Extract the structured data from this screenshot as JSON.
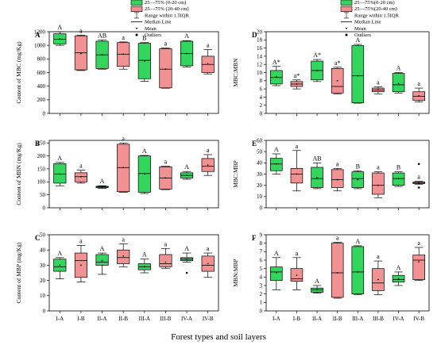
{
  "figure": {
    "xlabel": "Forest types and soil layers",
    "colors": {
      "green": "#33d65c",
      "pink": "#f29191",
      "stroke": "#000000"
    }
  },
  "legend_left": {
    "entries": [
      "25—75% (0-20 cm)",
      "25—75% (20-40 cm)",
      "Range within 1.5IQR",
      "Median Line",
      "Mean",
      "Outliers"
    ]
  },
  "legend_right": {
    "entries": [
      "25—75%(0-20 cm)",
      "25—75%(20-40 cm)",
      "Range within 1.5IQR",
      "Median Line",
      "Mean",
      "Outliers"
    ]
  },
  "chart_data": [
    {
      "type": "box",
      "panel": "A",
      "ylabel": "Content of MBC (mg/Kg)",
      "yticks": [
        0,
        200,
        400,
        600,
        800,
        1000,
        1200
      ],
      "ylim": [
        0,
        1200
      ],
      "categories": [
        "I-A",
        "I-B",
        "II-A",
        "II-B",
        "III-A",
        "III-B",
        "IV-A",
        "IV-B"
      ],
      "boxes": [
        {
          "cat": "I-A",
          "color": "green",
          "min": 1000,
          "q1": 1020,
          "median": 1090,
          "q3": 1170,
          "max": 1200,
          "mean": 1095,
          "letter": "A"
        },
        {
          "cat": "I-B",
          "color": "pink",
          "min": 630,
          "q1": 640,
          "median": 890,
          "q3": 1140,
          "max": 1150,
          "mean": 880,
          "letter": "a"
        },
        {
          "cat": "II-A",
          "color": "green",
          "min": 650,
          "q1": 660,
          "median": 860,
          "q3": 1060,
          "max": 1080,
          "mean": 860,
          "letter": "AB"
        },
        {
          "cat": "II-B",
          "color": "pink",
          "min": 650,
          "q1": 690,
          "median": 870,
          "q3": 1040,
          "max": 1050,
          "mean": 870,
          "letter": "a"
        },
        {
          "cat": "III-A",
          "color": "green",
          "min": 470,
          "q1": 510,
          "median": 780,
          "q3": 1030,
          "max": 1040,
          "mean": 770,
          "letter": "B"
        },
        {
          "cat": "III-B",
          "color": "pink",
          "min": 370,
          "q1": 375,
          "median": 650,
          "q3": 950,
          "max": 960,
          "mean": 650,
          "letter": "a"
        },
        {
          "cat": "IV-A",
          "color": "green",
          "min": 680,
          "q1": 700,
          "median": 880,
          "q3": 1060,
          "max": 1070,
          "mean": 880,
          "letter": "A"
        },
        {
          "cat": "IV-B",
          "color": "pink",
          "min": 580,
          "q1": 600,
          "median": 720,
          "q3": 840,
          "max": 940,
          "mean": 730,
          "letter": "a"
        }
      ]
    },
    {
      "type": "box",
      "panel": "B",
      "ylabel": "Content of MBN (mg/Kg)",
      "yticks": [
        0,
        50,
        100,
        150,
        200,
        250
      ],
      "ylim": [
        0,
        260
      ],
      "categories": [
        "I-A",
        "I-B",
        "II-A",
        "II-B",
        "III-A",
        "III-B",
        "IV-A",
        "IV-B"
      ],
      "boxes": [
        {
          "cat": "I-A",
          "color": "green",
          "min": 85,
          "q1": 95,
          "median": 130,
          "q3": 170,
          "max": 175,
          "mean": 130,
          "letter": "A"
        },
        {
          "cat": "I-B",
          "color": "pink",
          "min": 95,
          "q1": 100,
          "median": 120,
          "q3": 135,
          "max": 145,
          "mean": 120,
          "letter": "a"
        },
        {
          "cat": "II-A",
          "color": "green",
          "min": 75,
          "q1": 78,
          "median": 80,
          "q3": 83,
          "max": 85,
          "mean": 80,
          "letter": "A"
        },
        {
          "cat": "II-B",
          "color": "pink",
          "min": 60,
          "q1": 62,
          "median": 155,
          "q3": 245,
          "max": 250,
          "mean": 155,
          "letter": "a"
        },
        {
          "cat": "III-A",
          "color": "green",
          "min": 55,
          "q1": 60,
          "median": 132,
          "q3": 200,
          "max": 202,
          "mean": 130,
          "letter": "A"
        },
        {
          "cat": "III-B",
          "color": "pink",
          "min": 70,
          "q1": 72,
          "median": 115,
          "q3": 158,
          "max": 160,
          "mean": 115,
          "letter": "a"
        },
        {
          "cat": "IV-A",
          "color": "green",
          "min": 110,
          "q1": 115,
          "median": 125,
          "q3": 135,
          "max": 140,
          "mean": 125,
          "letter": "A"
        },
        {
          "cat": "IV-B",
          "color": "pink",
          "min": 125,
          "q1": 140,
          "median": 160,
          "q3": 190,
          "max": 205,
          "mean": 165,
          "letter": "a"
        }
      ]
    },
    {
      "type": "box",
      "panel": "C",
      "ylabel": "Content of MBP (mg/Kg)",
      "yticks": [
        0,
        10,
        20,
        30,
        40,
        50
      ],
      "ylim": [
        0,
        50
      ],
      "categories": [
        "I-A",
        "I-B",
        "II-A",
        "II-B",
        "III-A",
        "III-B",
        "IV-A",
        "IV-B"
      ],
      "boxes": [
        {
          "cat": "I-A",
          "color": "green",
          "min": 21,
          "q1": 26,
          "median": 29,
          "q3": 34,
          "max": 35,
          "mean": 30,
          "letter": "A"
        },
        {
          "cat": "I-B",
          "color": "pink",
          "min": 19,
          "q1": 22,
          "median": 33,
          "q3": 38,
          "max": 43,
          "mean": 30,
          "letter": "a"
        },
        {
          "cat": "II-A",
          "color": "green",
          "min": 24,
          "q1": 30,
          "median": 32,
          "q3": 37,
          "max": 38,
          "mean": 33,
          "letter": "A"
        },
        {
          "cat": "II-B",
          "color": "pink",
          "min": 29,
          "q1": 31,
          "median": 35,
          "q3": 40,
          "max": 44,
          "mean": 36,
          "letter": "a"
        },
        {
          "cat": "III-A",
          "color": "green",
          "min": 25,
          "q1": 27,
          "median": 29,
          "q3": 31,
          "max": 34,
          "mean": 29,
          "letter": "A"
        },
        {
          "cat": "III-B",
          "color": "pink",
          "min": 28,
          "q1": 29,
          "median": 31,
          "q3": 37,
          "max": 41,
          "mean": 32,
          "letter": "a"
        },
        {
          "cat": "IV-A",
          "color": "green",
          "min": 32,
          "q1": 33,
          "median": 34,
          "q3": 35,
          "max": 38,
          "mean": 34,
          "outliers": [
            25
          ],
          "letter": "A"
        },
        {
          "cat": "IV-B",
          "color": "pink",
          "min": 22,
          "q1": 26,
          "median": 30,
          "q3": 36,
          "max": 38,
          "mean": 31,
          "letter": "a"
        }
      ]
    },
    {
      "type": "box",
      "panel": "D",
      "ylabel": "MBC:MBN",
      "yticks": [
        0,
        2,
        4,
        6,
        8,
        10,
        12,
        14,
        16,
        18,
        20
      ],
      "ylim": [
        0,
        20
      ],
      "categories": [
        "I-A",
        "I-B",
        "II-A",
        "II-B",
        "III-A",
        "III-B",
        "IV-A",
        "IV-B"
      ],
      "boxes": [
        {
          "cat": "I-A",
          "color": "green",
          "min": 6.8,
          "q1": 7.2,
          "median": 8.8,
          "q3": 10.5,
          "max": 11.5,
          "mean": 9,
          "letter": "A*"
        },
        {
          "cat": "I-B",
          "color": "pink",
          "min": 6.0,
          "q1": 6.6,
          "median": 7.2,
          "q3": 7.8,
          "max": 8.2,
          "mean": 7.2,
          "letter": "a*"
        },
        {
          "cat": "II-A",
          "color": "green",
          "min": 7.8,
          "q1": 8.2,
          "median": 10.5,
          "q3": 12.8,
          "max": 13.2,
          "mean": 10.5,
          "letter": "A*"
        },
        {
          "cat": "II-B",
          "color": "pink",
          "min": 4.8,
          "q1": 5.0,
          "median": 6.6,
          "q3": 11.0,
          "max": 11.3,
          "mean": 8,
          "letter": "a*"
        },
        {
          "cat": "III-A",
          "color": "green",
          "min": 2.5,
          "q1": 2.6,
          "median": 9.2,
          "q3": 16.6,
          "max": 16.9,
          "mean": 9.2,
          "letter": "A"
        },
        {
          "cat": "III-B",
          "color": "pink",
          "min": 4.8,
          "q1": 5.3,
          "median": 5.7,
          "q3": 6.2,
          "max": 6.5,
          "mean": 5.8,
          "letter": "a"
        },
        {
          "cat": "IV-A",
          "color": "green",
          "min": 5.0,
          "q1": 5.3,
          "median": 7.0,
          "q3": 9.8,
          "max": 10.0,
          "mean": 7.3,
          "letter": "A"
        },
        {
          "cat": "IV-B",
          "color": "pink",
          "min": 2.8,
          "q1": 3.2,
          "median": 4.2,
          "q3": 5.3,
          "max": 6.2,
          "mean": 4.3,
          "letter": "a"
        }
      ]
    },
    {
      "type": "box",
      "panel": "E",
      "ylabel": "MBC:MBP",
      "yticks": [
        0,
        10,
        20,
        30,
        40,
        50,
        60
      ],
      "ylim": [
        0,
        60
      ],
      "categories": [
        "I-A",
        "I-B",
        "II-A",
        "II-B",
        "III-A",
        "III-B",
        "IV-A",
        "IV-B"
      ],
      "boxes": [
        {
          "cat": "I-A",
          "color": "green",
          "min": 30,
          "q1": 33,
          "median": 39,
          "q3": 44,
          "max": 48,
          "mean": 39,
          "letter": "A"
        },
        {
          "cat": "I-B",
          "color": "pink",
          "min": 15,
          "q1": 22,
          "median": 30,
          "q3": 35,
          "max": 51,
          "mean": 30,
          "letter": "a"
        },
        {
          "cat": "II-A",
          "color": "green",
          "min": 17,
          "q1": 18,
          "median": 26,
          "q3": 36,
          "max": 40,
          "mean": 27,
          "letter": "AB"
        },
        {
          "cat": "II-B",
          "color": "pink",
          "min": 15,
          "q1": 18,
          "median": 25,
          "q3": 34,
          "max": 35,
          "mean": 25,
          "letter": "a"
        },
        {
          "cat": "III-A",
          "color": "green",
          "min": 17,
          "q1": 18,
          "median": 26,
          "q3": 32,
          "max": 33,
          "mean": 25,
          "letter": "B"
        },
        {
          "cat": "III-B",
          "color": "pink",
          "min": 9,
          "q1": 12,
          "median": 20,
          "q3": 31,
          "max": 32,
          "mean": 20,
          "letter": "a"
        },
        {
          "cat": "IV-A",
          "color": "green",
          "min": 19,
          "q1": 20,
          "median": 26,
          "q3": 31,
          "max": 32,
          "mean": 26,
          "letter": "B"
        },
        {
          "cat": "IV-B",
          "color": "pink",
          "min": 21,
          "q1": 21.5,
          "median": 22,
          "q3": 23,
          "max": 23.5,
          "mean": 22,
          "outliers": [
            39,
            18
          ],
          "letter": "a"
        }
      ]
    },
    {
      "type": "box",
      "panel": "F",
      "ylabel": "MBN:MBP",
      "yticks": [
        0,
        1,
        2,
        3,
        4,
        5,
        6,
        7,
        8,
        9
      ],
      "ylim": [
        0,
        9
      ],
      "categories": [
        "I-A",
        "I-B",
        "II-A",
        "II-B",
        "III-A",
        "III-B",
        "IV-A",
        "IV-B"
      ],
      "boxes": [
        {
          "cat": "I-A",
          "color": "green",
          "min": 2.5,
          "q1": 3.6,
          "median": 4.6,
          "q3": 5.2,
          "max": 6.3,
          "mean": 4.5,
          "letter": "A"
        },
        {
          "cat": "I-B",
          "color": "pink",
          "min": 2.5,
          "q1": 3.5,
          "median": 3.8,
          "q3": 5.0,
          "max": 6.3,
          "mean": 4.2,
          "letter": "a"
        },
        {
          "cat": "II-A",
          "color": "green",
          "min": 2.1,
          "q1": 2.2,
          "median": 2.5,
          "q3": 2.7,
          "max": 3.0,
          "mean": 2.5,
          "letter": "A"
        },
        {
          "cat": "II-B",
          "color": "pink",
          "min": 1.5,
          "q1": 1.6,
          "median": 4.5,
          "q3": 8.0,
          "max": 8.1,
          "mean": 4.5,
          "letter": "a"
        },
        {
          "cat": "III-A",
          "color": "green",
          "min": 1.9,
          "q1": 2.0,
          "median": 4.6,
          "q3": 7.6,
          "max": 7.7,
          "mean": 4.6,
          "letter": "A"
        },
        {
          "cat": "III-B",
          "color": "pink",
          "min": 1.9,
          "q1": 2.4,
          "median": 3.3,
          "q3": 5.0,
          "max": 5.9,
          "mean": 3.7,
          "letter": "a"
        },
        {
          "cat": "IV-A",
          "color": "green",
          "min": 3.0,
          "q1": 3.4,
          "median": 3.7,
          "q3": 4.2,
          "max": 4.6,
          "mean": 3.8,
          "letter": "A"
        },
        {
          "cat": "IV-B",
          "color": "pink",
          "min": 3.6,
          "q1": 3.7,
          "median": 6.0,
          "q3": 6.6,
          "max": 7.5,
          "mean": 5.8,
          "letter": "a"
        }
      ]
    }
  ]
}
